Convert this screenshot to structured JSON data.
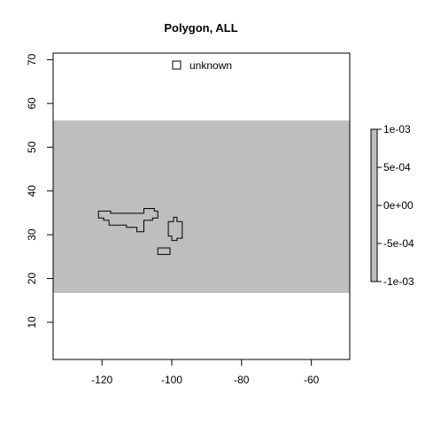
{
  "chart_data": {
    "type": "map",
    "title": "Polygon, ALL",
    "xlim": [
      -134,
      -49
    ],
    "ylim": [
      1.5,
      71.5
    ],
    "x_ticks": [
      -120,
      -100,
      -80,
      -60
    ],
    "y_ticks": [
      10,
      20,
      30,
      40,
      50,
      60,
      70
    ],
    "x_tick_labels": [
      "-120",
      "-100",
      "-80",
      "-60"
    ],
    "y_tick_labels": [
      "10",
      "20",
      "30",
      "40",
      "50",
      "60",
      "70"
    ],
    "fill_band": {
      "xmin": -134,
      "xmax": -49,
      "ymin": 16.7,
      "ymax": 56.1,
      "color": "#bebebe"
    },
    "polygons": [
      [
        [
          -121,
          33.8
        ],
        [
          -121,
          35.4
        ],
        [
          -117.5,
          35.4
        ],
        [
          -117.5,
          34.9
        ],
        [
          -108,
          34.9
        ],
        [
          -108,
          36.0
        ],
        [
          -105,
          36.0
        ],
        [
          -105,
          35.4
        ],
        [
          -104,
          35.4
        ],
        [
          -104,
          33.8
        ],
        [
          -105.5,
          33.8
        ],
        [
          -105.5,
          33.3
        ],
        [
          -108,
          33.3
        ],
        [
          -108,
          30.7
        ],
        [
          -110,
          30.7
        ],
        [
          -110,
          31.7
        ],
        [
          -113,
          31.7
        ],
        [
          -113,
          32.2
        ],
        [
          -118,
          32.2
        ],
        [
          -118,
          33.3
        ],
        [
          -119.5,
          33.3
        ],
        [
          -119.5,
          33.8
        ]
      ],
      [
        [
          -101,
          29.7
        ],
        [
          -101,
          33.0
        ],
        [
          -99.5,
          33.0
        ],
        [
          -99.5,
          34.0
        ],
        [
          -98.5,
          34.0
        ],
        [
          -98.5,
          33.0
        ],
        [
          -97,
          33.0
        ],
        [
          -97,
          29.2
        ],
        [
          -98.5,
          29.2
        ],
        [
          -98.5,
          28.7
        ],
        [
          -100,
          28.7
        ],
        [
          -100,
          29.7
        ]
      ],
      [
        [
          -104,
          25.5
        ],
        [
          -104,
          27.0
        ],
        [
          -100.5,
          27.0
        ],
        [
          -100.5,
          25.5
        ]
      ]
    ],
    "legend": {
      "symbol": "square",
      "label": "unknown",
      "position": "top"
    },
    "colorbar": {
      "ticks": [
        0.001,
        0.0005,
        0,
        -0.0005,
        -0.001
      ],
      "labels": [
        "1e-03",
        "5e-04",
        "0e+00",
        "-5e-04",
        "-1e-03"
      ],
      "fill": "#bebebe"
    }
  }
}
